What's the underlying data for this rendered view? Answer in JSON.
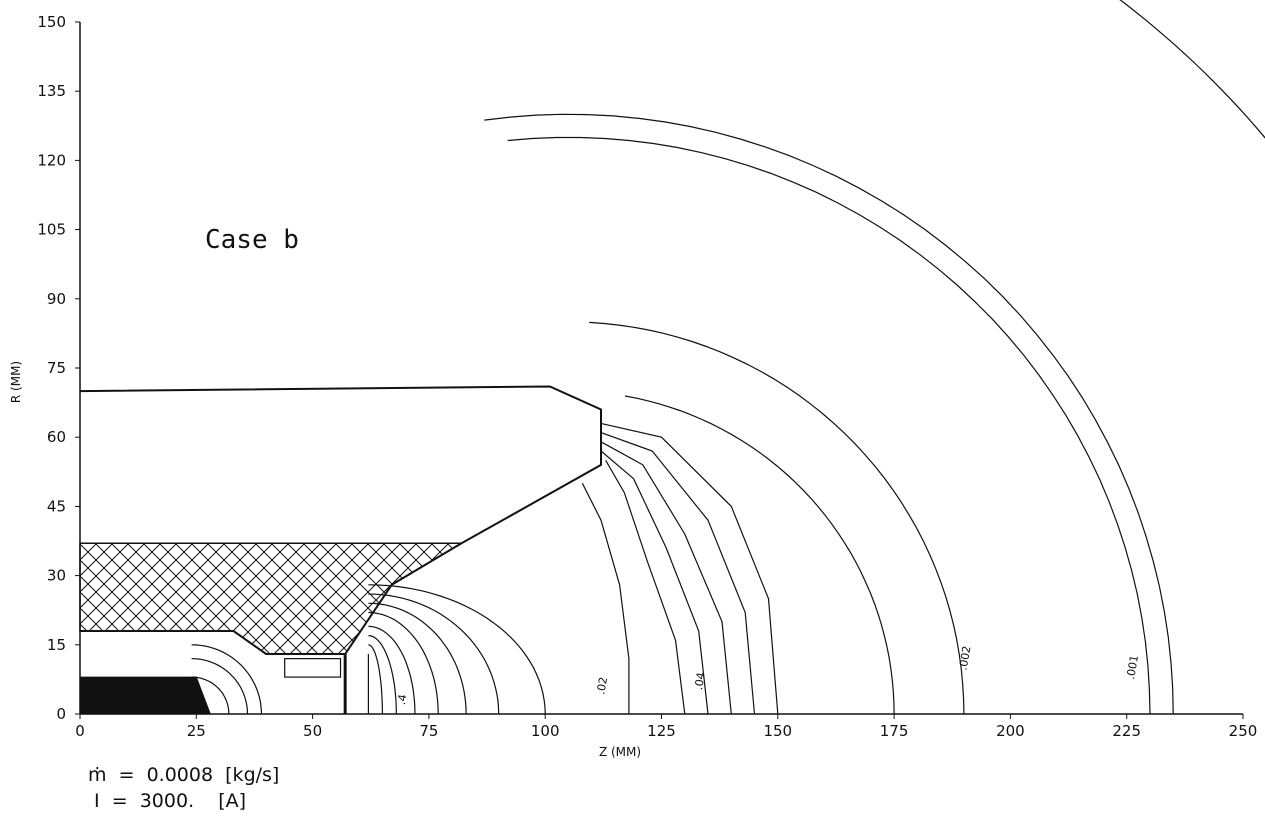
{
  "chart_data": {
    "type": "line",
    "title": "Case b",
    "xlabel": "Z (MM)",
    "ylabel": "R (MM)",
    "xlim": [
      0,
      250
    ],
    "ylim": [
      0,
      150
    ],
    "x_ticks": [
      "0",
      "25",
      "50",
      "75",
      "100",
      "125",
      "150",
      "175",
      "200",
      "225",
      "250"
    ],
    "y_ticks": [
      "0",
      "15",
      "30",
      "45",
      "60",
      "75",
      "90",
      "105",
      "120",
      "135",
      "150"
    ],
    "grid": false,
    "geometry": {
      "electrode_outline": [
        [
          0,
          70
        ],
        [
          101,
          71
        ],
        [
          112,
          66
        ],
        [
          112,
          54
        ],
        [
          82,
          37
        ],
        [
          67,
          28
        ],
        [
          57,
          13
        ],
        [
          40,
          13
        ],
        [
          33,
          18
        ],
        [
          0,
          18
        ]
      ],
      "insulator_hatched": [
        [
          0,
          37
        ],
        [
          82,
          37
        ],
        [
          67,
          28
        ],
        [
          57,
          13
        ],
        [
          40,
          13
        ],
        [
          33,
          18
        ],
        [
          0,
          18
        ]
      ],
      "cathode_block": [
        [
          0,
          8
        ],
        [
          25,
          8
        ],
        [
          28,
          0
        ],
        [
          0,
          0
        ]
      ]
    },
    "contour_labels": [
      {
        "text": ".4",
        "z": 70,
        "r": 3
      },
      {
        "text": ".02",
        "z": 113,
        "r": 6
      },
      {
        "text": ".04",
        "z": 134,
        "r": 7
      },
      {
        "text": ".002",
        "z": 191,
        "r": 12
      },
      {
        "text": ".001",
        "z": 227,
        "r": 10
      }
    ],
    "outer_contours_crossing_z_axis": [
      175,
      191,
      227,
      235
    ]
  },
  "annotations": {
    "mdot": "ṁ  =  0.0008  [kg/s]",
    "current": " I  =  3000.    [A]"
  }
}
